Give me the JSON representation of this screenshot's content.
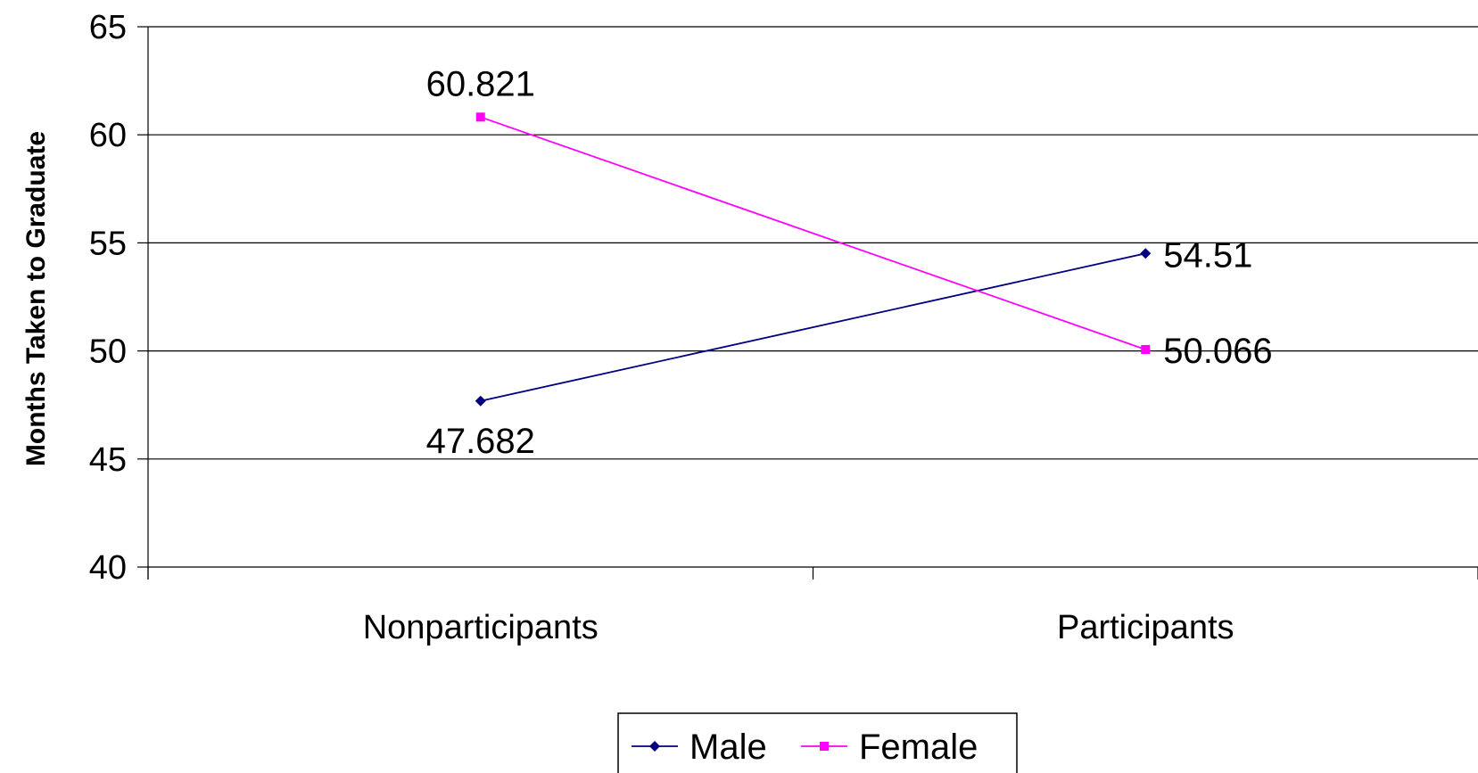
{
  "chart_data": {
    "type": "line",
    "categories": [
      "Nonparticipants",
      "Participants"
    ],
    "series": [
      {
        "name": "Male",
        "values": [
          47.682,
          54.51
        ],
        "labels": [
          "47.682",
          "54.51"
        ],
        "color": "#000080",
        "marker": "diamond"
      },
      {
        "name": "Female",
        "values": [
          60.821,
          50.066
        ],
        "labels": [
          "60.821",
          "50.066"
        ],
        "color": "#ff00ff",
        "marker": "square"
      }
    ],
    "title": "",
    "xlabel": "",
    "ylabel": "Months Taken to Graduate",
    "ylim": [
      40,
      65
    ],
    "yticks": [
      40,
      45,
      50,
      55,
      60,
      65
    ],
    "grid": true,
    "legend": "bottom"
  }
}
